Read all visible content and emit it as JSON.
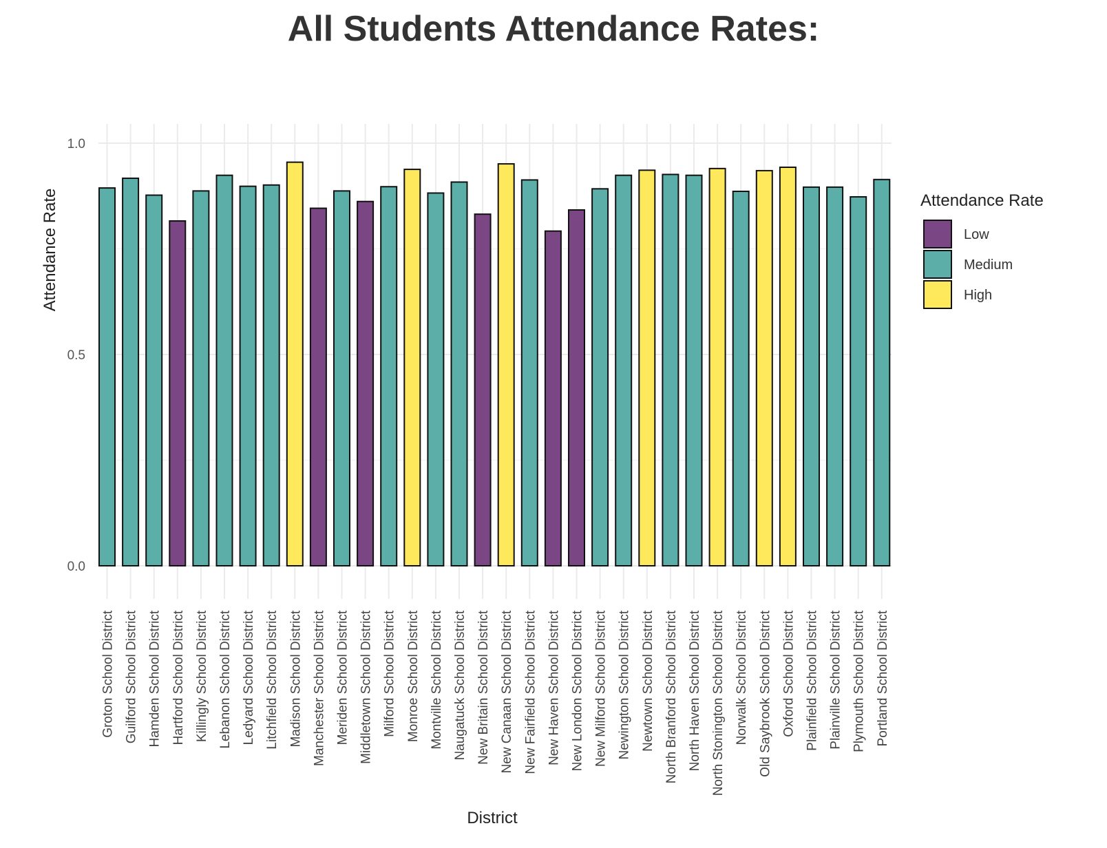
{
  "chart_data": {
    "type": "bar",
    "title": "All Students Attendance Rates:",
    "xlabel": "District",
    "ylabel": "Attendance Rate",
    "ylim": [
      0,
      1.0
    ],
    "yticks": [
      "0.0",
      "0.5",
      "1.0"
    ],
    "grid": true,
    "legend": {
      "title": "Attendance Rate",
      "placement": "right",
      "entries": [
        {
          "label": "Low",
          "color": "#7B4684"
        },
        {
          "label": "Medium",
          "color": "#5BAFA8"
        },
        {
          "label": "High",
          "color": "#FDE95B"
        }
      ]
    },
    "categories": [
      "Groton School District",
      "Guilford School District",
      "Hamden School District",
      "Hartford School District",
      "Killingly School District",
      "Lebanon School District",
      "Ledyard School District",
      "Litchfield School District",
      "Madison School District",
      "Manchester School District",
      "Meriden School District",
      "Middletown School District",
      "Milford School District",
      "Monroe School District",
      "Montville School District",
      "Naugatuck School District",
      "New Britain School District",
      "New Canaan School District",
      "New Fairfield School District",
      "New Haven School District",
      "New London School District",
      "New Milford School District",
      "Newington School District",
      "Newtown School District",
      "North Branford School District",
      "North Haven School District",
      "North Stonington School District",
      "Norwalk School District",
      "Old Saybrook School District",
      "Oxford School District",
      "Plainfield School District",
      "Plainville School District",
      "Plymouth School District",
      "Portland School District"
    ],
    "values": [
      0.894,
      0.917,
      0.877,
      0.816,
      0.887,
      0.924,
      0.898,
      0.901,
      0.955,
      0.846,
      0.887,
      0.862,
      0.897,
      0.938,
      0.882,
      0.908,
      0.832,
      0.951,
      0.913,
      0.792,
      0.842,
      0.892,
      0.924,
      0.936,
      0.926,
      0.924,
      0.94,
      0.886,
      0.935,
      0.943,
      0.896,
      0.896,
      0.873,
      0.914
    ],
    "levels": [
      "Medium",
      "Medium",
      "Medium",
      "Low",
      "Medium",
      "Medium",
      "Medium",
      "Medium",
      "High",
      "Low",
      "Medium",
      "Low",
      "Medium",
      "High",
      "Medium",
      "Medium",
      "Low",
      "High",
      "Medium",
      "Low",
      "Low",
      "Medium",
      "Medium",
      "High",
      "Medium",
      "Medium",
      "High",
      "Medium",
      "High",
      "High",
      "Medium",
      "Medium",
      "Medium",
      "Medium"
    ]
  }
}
